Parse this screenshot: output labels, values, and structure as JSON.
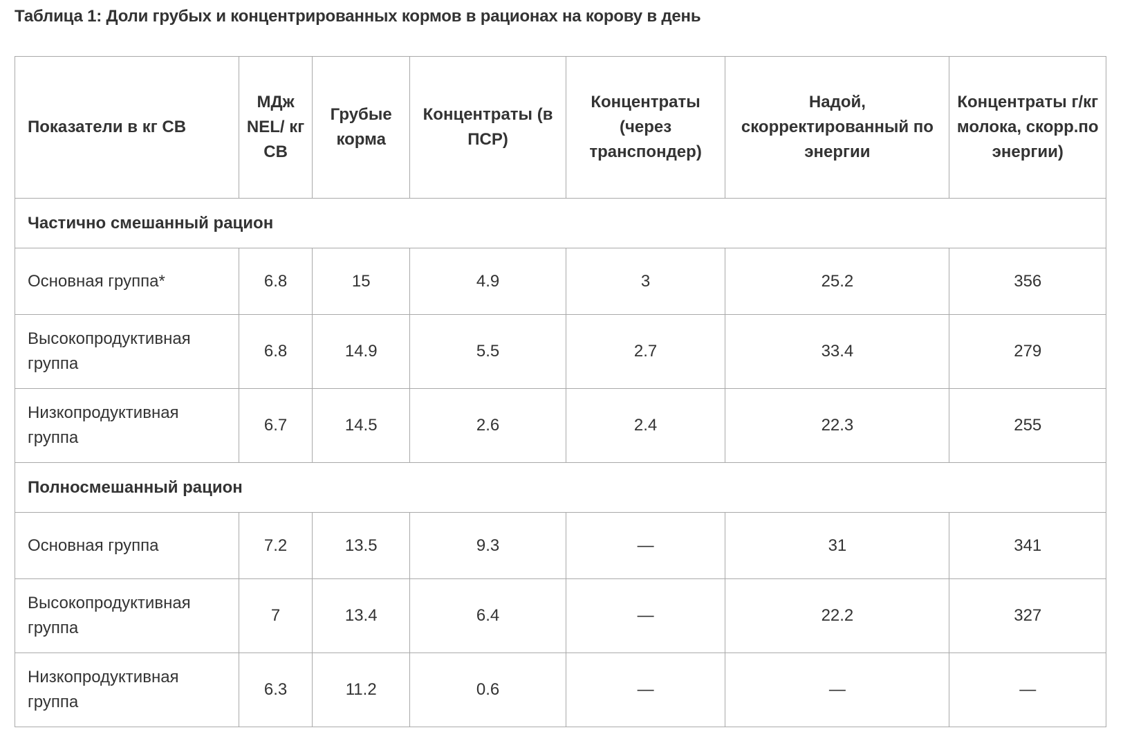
{
  "caption": "Таблица 1: Доли грубых и концентрированных кормов в рационах на корову в день",
  "table": {
    "headers": [
      "Показатели в кг СВ",
      "МДж NEL/ кг СВ",
      "Грубые корма",
      "Концентраты (в ПСР)",
      "Концентраты (через транспондер)",
      "Надой, скорректированный по энергии",
      "Концентраты г/кг молока, скорр.по энергии)"
    ],
    "sections": [
      {
        "title": "Частично смешанный рацион",
        "rows": [
          [
            "Основная группа*",
            "6.8",
            "15",
            "4.9",
            "3",
            "25.2",
            "356"
          ],
          [
            "Высокопродуктивная группа",
            "6.8",
            "14.9",
            "5.5",
            "2.7",
            "33.4",
            "279"
          ],
          [
            "Низкопродуктивная группа",
            "6.7",
            "14.5",
            "2.6",
            "2.4",
            "22.3",
            "255"
          ]
        ]
      },
      {
        "title": "Полносмешанный рацион",
        "rows": [
          [
            "Основная группа",
            "7.2",
            "13.5",
            "9.3",
            "—",
            "31",
            "341"
          ],
          [
            "Высокопродуктивная группа",
            "7",
            "13.4",
            "6.4",
            "—",
            "22.2",
            "327"
          ],
          [
            "Низкопродуктивная группа",
            "6.3",
            "11.2",
            "0.6",
            "—",
            "—",
            "—"
          ]
        ]
      }
    ]
  }
}
